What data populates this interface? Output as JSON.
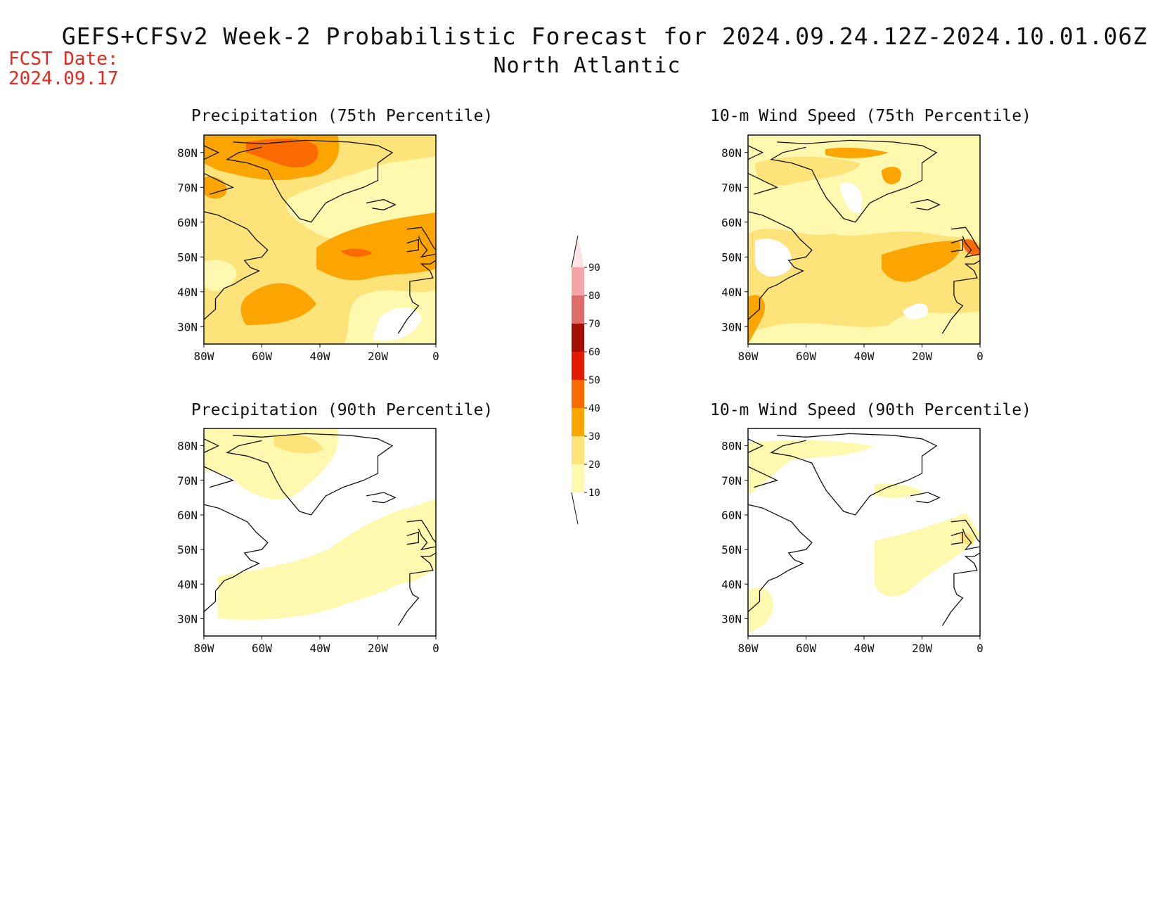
{
  "header": {
    "title": "GEFS+CFSv2 Week-2 Probabilistic Forecast for 2024.09.24.12Z-2024.10.01.06Z",
    "subtitle": "North Atlantic",
    "fcst_label": "FCST Date:",
    "fcst_date": "2024.09.17"
  },
  "panels": [
    {
      "title": "Precipitation (75th Percentile)",
      "field": "precip75"
    },
    {
      "title": "10-m Wind Speed (75th Percentile)",
      "field": "wind75"
    },
    {
      "title": "Precipitation (90th Percentile)",
      "field": "precip90"
    },
    {
      "title": "10-m Wind Speed (90th Percentile)",
      "field": "wind90"
    }
  ],
  "axes": {
    "lat_labels": [
      "80N",
      "70N",
      "60N",
      "50N",
      "40N",
      "30N"
    ],
    "lon_labels": [
      "80W",
      "60W",
      "40W",
      "20W",
      "0"
    ],
    "lat_values": [
      80,
      70,
      60,
      50,
      40,
      30
    ],
    "lon_values": [
      -80,
      -60,
      -40,
      -20,
      0
    ],
    "lat_range": [
      25,
      85
    ],
    "lon_range": [
      -80,
      0
    ]
  },
  "colorbar": {
    "levels": [
      "10",
      "20",
      "30",
      "40",
      "50",
      "60",
      "70",
      "80",
      "90"
    ],
    "colors": [
      "#fff9b0",
      "#fde37a",
      "#fca500",
      "#fb6a00",
      "#e31a00",
      "#a50f00",
      "#e06b6b",
      "#f4a6a6",
      "#fde3e3"
    ]
  }
}
